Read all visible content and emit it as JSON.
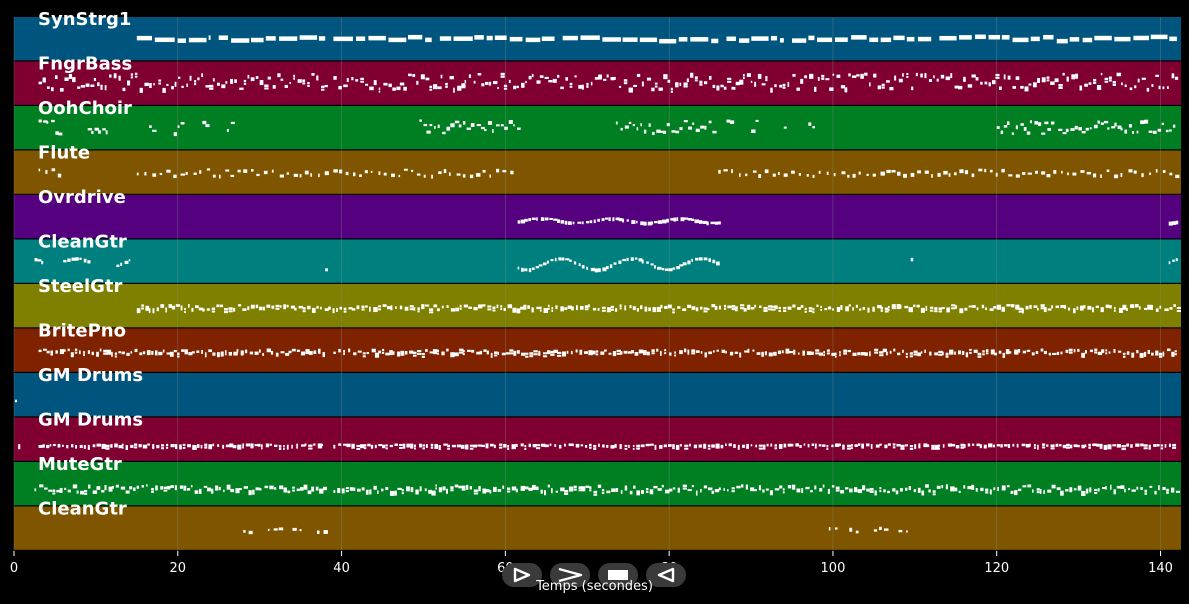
{
  "chart_data": {
    "type": "piano-roll",
    "title": "",
    "xlabel": "Temps (secondes)",
    "ylabel": "",
    "xlim": [
      0,
      142.5
    ],
    "xticks": [
      0,
      20,
      40,
      60,
      80,
      100,
      120,
      140
    ],
    "grid": true,
    "tracks": [
      {
        "name": "SynStrg1",
        "color": "#00557f",
        "segments": [
          [
            15,
            24
          ],
          [
            25,
            38
          ],
          [
            39,
            51
          ],
          [
            52,
            66
          ],
          [
            67,
            86
          ],
          [
            87,
            94
          ],
          [
            95,
            112
          ],
          [
            113,
            142
          ]
        ],
        "density": "continuous",
        "pitch_range": [
          0.45,
          0.55
        ]
      },
      {
        "name": "FngrBass",
        "color": "#7f0030",
        "segments": [
          [
            3,
            38
          ],
          [
            39,
            142
          ]
        ],
        "density": "dense",
        "pitch_range": [
          0.25,
          0.6
        ]
      },
      {
        "name": "OohChoir",
        "color": "#007f22",
        "segments": [
          [
            3,
            5.5
          ],
          [
            9,
            11.5
          ],
          [
            16.5,
            17
          ],
          [
            19.5,
            20.5
          ],
          [
            23,
            23.5
          ],
          [
            26,
            26.5
          ],
          [
            49.5,
            56
          ],
          [
            56.5,
            61.5
          ],
          [
            73.5,
            85.5
          ],
          [
            87,
            87.5
          ],
          [
            90,
            91
          ],
          [
            94,
            94.5
          ],
          [
            97,
            97.5
          ],
          [
            120,
            127
          ],
          [
            127.5,
            142
          ]
        ],
        "density": "mixed",
        "pitch_range": [
          0.3,
          0.6
        ]
      },
      {
        "name": "Flute",
        "color": "#7f5500",
        "segments": [
          [
            3,
            5.5
          ],
          [
            15,
            38
          ],
          [
            39,
            61.5
          ],
          [
            86,
            142
          ]
        ],
        "density": "sparse",
        "pitch_range": [
          0.4,
          0.55
        ]
      },
      {
        "name": "Ovrdrive",
        "color": "#55007f",
        "segments": [
          [
            61.5,
            86
          ],
          [
            141,
            142
          ]
        ],
        "density": "melodic",
        "pitch_range": [
          0.5,
          0.6
        ]
      },
      {
        "name": "CleanGtr",
        "color": "#007f7f",
        "segments": [
          [
            2.5,
            3.5
          ],
          [
            6,
            9
          ],
          [
            12.5,
            14.5
          ],
          [
            38,
            38.2
          ],
          [
            61.5,
            86
          ],
          [
            109.5,
            110
          ],
          [
            141,
            142
          ]
        ],
        "density": "melodic",
        "pitch_range": [
          0.4,
          0.65
        ]
      },
      {
        "name": "SteelGtr",
        "color": "#7f7f00",
        "segments": [
          [
            15,
            142
          ]
        ],
        "density": "dense",
        "pitch_range": [
          0.45,
          0.55
        ]
      },
      {
        "name": "BritePno",
        "color": "#7f2200",
        "segments": [
          [
            3,
            38
          ],
          [
            39,
            142
          ]
        ],
        "density": "dense",
        "pitch_range": [
          0.45,
          0.55
        ]
      },
      {
        "name": "GM Drums",
        "color": "#00557f",
        "segments": [
          [
            0,
            0.5
          ]
        ],
        "density": "single",
        "pitch_range": [
          0.6,
          0.6
        ]
      },
      {
        "name": "GM Drums",
        "color": "#7f0030",
        "segments": [
          [
            0.5,
            1
          ],
          [
            3,
            38
          ],
          [
            39,
            142
          ]
        ],
        "density": "dense",
        "pitch_range": [
          0.58,
          0.62
        ]
      },
      {
        "name": "MuteGtr",
        "color": "#007f22",
        "segments": [
          [
            2.5,
            38
          ],
          [
            39,
            142
          ]
        ],
        "density": "dense",
        "pitch_range": [
          0.5,
          0.65
        ]
      },
      {
        "name": "CleanGtr",
        "color": "#7f5500",
        "segments": [
          [
            28,
            29
          ],
          [
            31,
            32.5
          ],
          [
            34,
            35.5
          ],
          [
            37,
            38
          ],
          [
            99.5,
            100.5
          ],
          [
            102,
            103.5
          ],
          [
            105,
            106.5
          ],
          [
            108,
            109
          ]
        ],
        "density": "sparse",
        "pitch_range": [
          0.45,
          0.55
        ]
      }
    ]
  },
  "controls": {
    "buttons": [
      {
        "name": "play-button",
        "icon": "play-icon"
      },
      {
        "name": "fast-forward-button",
        "icon": "fast-forward-icon"
      },
      {
        "name": "stop-button",
        "icon": "stop-icon"
      },
      {
        "name": "rewind-button",
        "icon": "rewind-icon"
      }
    ]
  },
  "colors": {
    "background": "#000000",
    "grid": "#8a8a8a",
    "note": "#ffffff"
  }
}
